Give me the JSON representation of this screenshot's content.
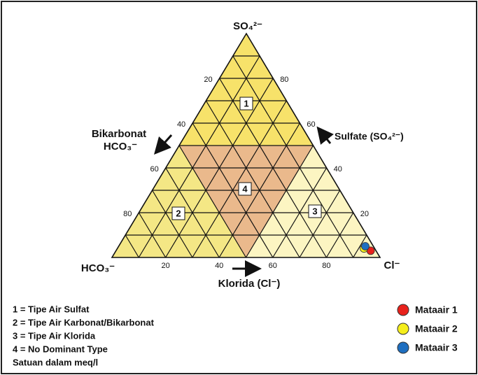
{
  "chart_data": {
    "type": "ternary",
    "vertex_labels": {
      "top": "SO₄²⁻",
      "left": "HCO₃⁻",
      "right": "Cl⁻"
    },
    "axis_labels": {
      "left_1": "Bikarbonat",
      "left_2": "HCO₃⁻",
      "right": "Sulfate (SO₄²⁻)",
      "bottom": "Klorida (Cl⁻)"
    },
    "cl_ticks": [
      20,
      40,
      60,
      80
    ],
    "hco3_ticks": [
      20,
      40,
      60,
      80
    ],
    "so4_ticks": [
      20,
      40,
      60,
      80
    ],
    "grid": true,
    "grid_divisions": 10,
    "regions": [
      {
        "label": "1",
        "color": "#f7e26a"
      },
      {
        "label": "2",
        "color": "#f4e785"
      },
      {
        "label": "3",
        "color": "#fcf5c2"
      },
      {
        "label": "4",
        "color": "#eab98c"
      }
    ],
    "notes": [
      "1 = Tipe Air Sulfat",
      "2 = Tipe Air Karbonat/Bikarbonat",
      "3 = Tipe Air Klorida",
      "4 = No Dominant Type",
      "Satuan dalam meq/l"
    ],
    "series": [
      {
        "name": "Mataair 1",
        "color": "#e8221c",
        "hco3": 2,
        "so4": 3,
        "cl": 95
      },
      {
        "name": "Mataair 2",
        "color": "#f5ee1c",
        "hco3": 4,
        "so4": 4,
        "cl": 92
      },
      {
        "name": "Mataair 3",
        "color": "#1f6fc0",
        "hco3": 3,
        "so4": 5,
        "cl": 92
      }
    ]
  }
}
